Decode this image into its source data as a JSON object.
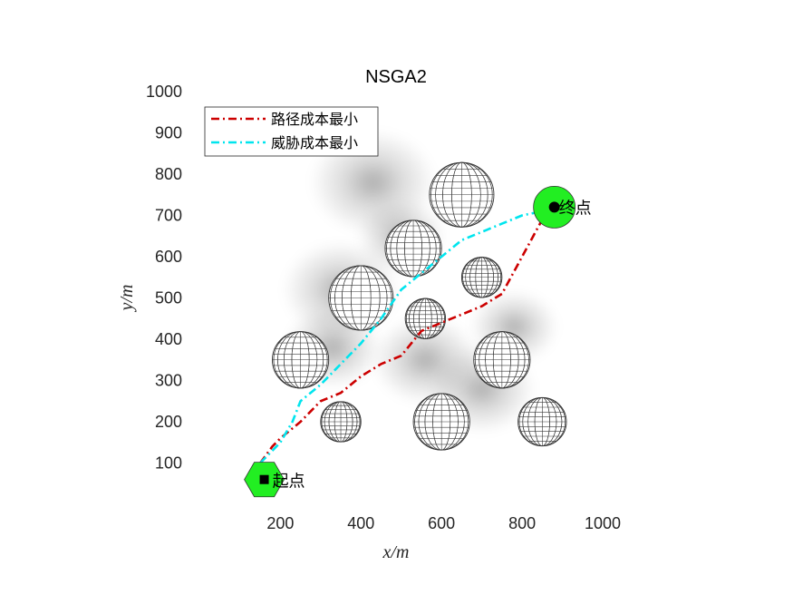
{
  "chart_data": {
    "type": "line",
    "title": "NSGA2",
    "xlabel": "x/m",
    "ylabel": "y/m",
    "xlim": [
      80,
      1000
    ],
    "ylim": [
      0,
      1000
    ],
    "xticks": [
      200,
      400,
      600,
      800,
      1000
    ],
    "yticks": [
      100,
      200,
      300,
      400,
      500,
      600,
      700,
      800,
      900,
      1000
    ],
    "grid": false,
    "legend_position": "top-left",
    "series": [
      {
        "name": "路径成本最小",
        "color": "#cc0000",
        "x": [
          150,
          180,
          200,
          250,
          300,
          350,
          400,
          450,
          500,
          550,
          600,
          650,
          700,
          750,
          800,
          850,
          880
        ],
        "y": [
          100,
          140,
          160,
          200,
          250,
          270,
          310,
          340,
          360,
          420,
          440,
          460,
          480,
          510,
          600,
          690,
          715
        ]
      },
      {
        "name": "威胁成本最小",
        "color": "#00e5ee",
        "x": [
          150,
          200,
          230,
          250,
          300,
          350,
          400,
          450,
          500,
          550,
          600,
          650,
          700,
          750,
          800,
          850,
          880
        ],
        "y": [
          100,
          150,
          200,
          250,
          290,
          340,
          390,
          450,
          520,
          560,
          600,
          640,
          660,
          680,
          700,
          710,
          715
        ]
      }
    ],
    "threats": [
      {
        "x": 650,
        "y": 750,
        "r": 80
      },
      {
        "x": 530,
        "y": 620,
        "r": 70
      },
      {
        "x": 400,
        "y": 500,
        "r": 80
      },
      {
        "x": 700,
        "y": 550,
        "r": 50
      },
      {
        "x": 560,
        "y": 450,
        "r": 50
      },
      {
        "x": 250,
        "y": 350,
        "r": 70
      },
      {
        "x": 750,
        "y": 350,
        "r": 70
      },
      {
        "x": 350,
        "y": 200,
        "r": 50
      },
      {
        "x": 600,
        "y": 200,
        "r": 70
      },
      {
        "x": 850,
        "y": 200,
        "r": 60
      }
    ],
    "start": {
      "x": 160,
      "y": 60,
      "label": "起点"
    },
    "end": {
      "x": 880,
      "y": 720,
      "label": "终点"
    }
  }
}
